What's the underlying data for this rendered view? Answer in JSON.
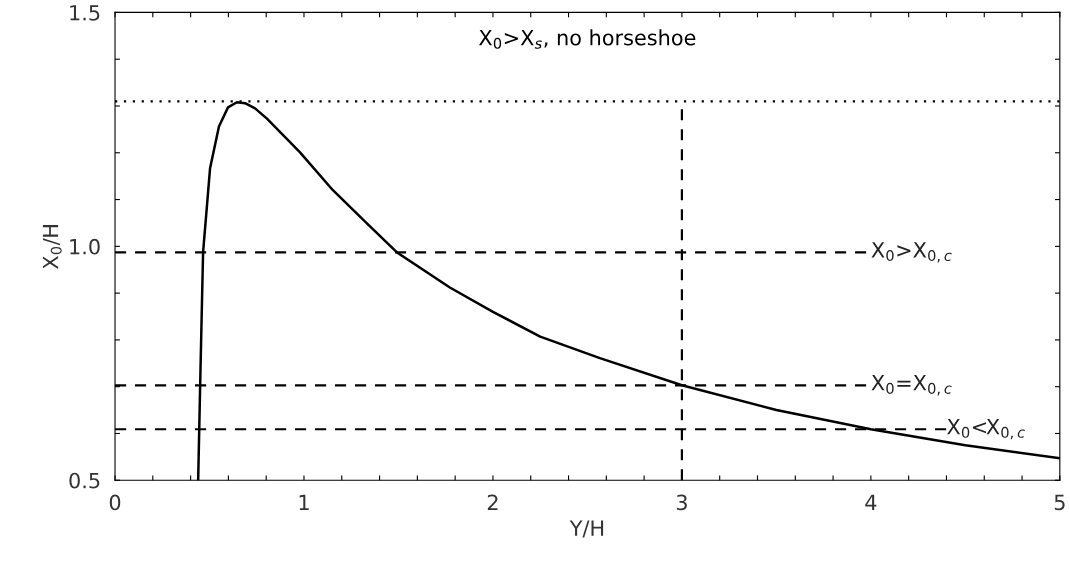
{
  "chart_data": {
    "type": "line",
    "xlabel": "Y/H",
    "ylabel": "X$_{0}$/H",
    "x": [
      0.44,
      0.453,
      0.466,
      0.503,
      0.55,
      0.598,
      0.645,
      0.688,
      0.741,
      0.804,
      0.979,
      1.153,
      1.333,
      1.492,
      1.772,
      2.0,
      2.25,
      2.566,
      3.0,
      3.5,
      4.0,
      4.5,
      5.0
    ],
    "series": [
      {
        "color": "#000000",
        "values": [
          0.5,
          0.75,
          0.987,
          1.167,
          1.256,
          1.297,
          1.308,
          1.306,
          1.295,
          1.273,
          1.201,
          1.12,
          1.049,
          0.987,
          0.912,
          0.86,
          0.807,
          0.761,
          0.703,
          0.65,
          0.609,
          0.575,
          0.547
        ]
      }
    ],
    "xlim": [
      0,
      5
    ],
    "ylim": [
      0.5,
      1.5
    ],
    "xticks": [
      0,
      {
        "value": 0.2,
        "label": null
      },
      {
        "value": 0.4,
        "label": null
      },
      {
        "value": 0.6,
        "label": null
      },
      {
        "value": 0.8,
        "label": null
      },
      1,
      {
        "value": 1.2,
        "label": null
      },
      {
        "value": 1.4,
        "label": null
      },
      {
        "value": 1.6,
        "label": null
      },
      {
        "value": 1.8,
        "label": null
      },
      2,
      {
        "value": 2.2,
        "label": null
      },
      {
        "value": 2.4,
        "label": null
      },
      {
        "value": 2.6,
        "label": null
      },
      {
        "value": 2.8,
        "label": null
      },
      3,
      {
        "value": 3.2,
        "label": null
      },
      {
        "value": 3.4,
        "label": null
      },
      {
        "value": 3.6,
        "label": null
      },
      {
        "value": 3.8,
        "label": null
      },
      4,
      {
        "value": 4.2,
        "label": null
      },
      {
        "value": 4.4,
        "label": null
      },
      {
        "value": 4.6,
        "label": null
      },
      {
        "value": 4.8,
        "label": null
      },
      5
    ],
    "yticks": [
      {
        "value": 0.5,
        "label": "0.5"
      },
      {
        "value": 0.6,
        "label": null
      },
      {
        "value": 0.7,
        "label": null
      },
      {
        "value": 0.8,
        "label": null
      },
      {
        "value": 0.9,
        "label": null
      },
      {
        "value": 1.0,
        "label": "1.0"
      },
      {
        "value": 1.1,
        "label": null
      },
      {
        "value": 1.2,
        "label": null
      },
      {
        "value": 1.3,
        "label": null
      },
      {
        "value": 1.4,
        "label": null
      },
      {
        "value": 1.5,
        "label": "1.5"
      }
    ],
    "ref_lines": [
      {
        "axis": "y",
        "value": 1.31,
        "line_style": "dotted",
        "color": "#000000"
      },
      {
        "axis": "y",
        "value": 0.987,
        "line_style": "dashed",
        "color": "#000000",
        "label": "X$_{0}$>X$_{0,c}$"
      },
      {
        "axis": "y",
        "value": 0.703,
        "line_style": "dashed",
        "color": "#000000",
        "label": "X$_{0}$=X$_{0,c}$"
      },
      {
        "axis": "y",
        "value": 0.609,
        "line_style": "dashed",
        "color": "#000000",
        "label": "X$_{0}$<X$_{0,c}$"
      },
      {
        "axis": "x",
        "value": 3,
        "line_style": "dashed",
        "color": "#000000"
      }
    ],
    "annotations": [
      "X$_{0}$>X$_{s}$, no horseshoe"
    ],
    "grid": false,
    "legend": false,
    "marker": "none",
    "line_style": "solid"
  }
}
